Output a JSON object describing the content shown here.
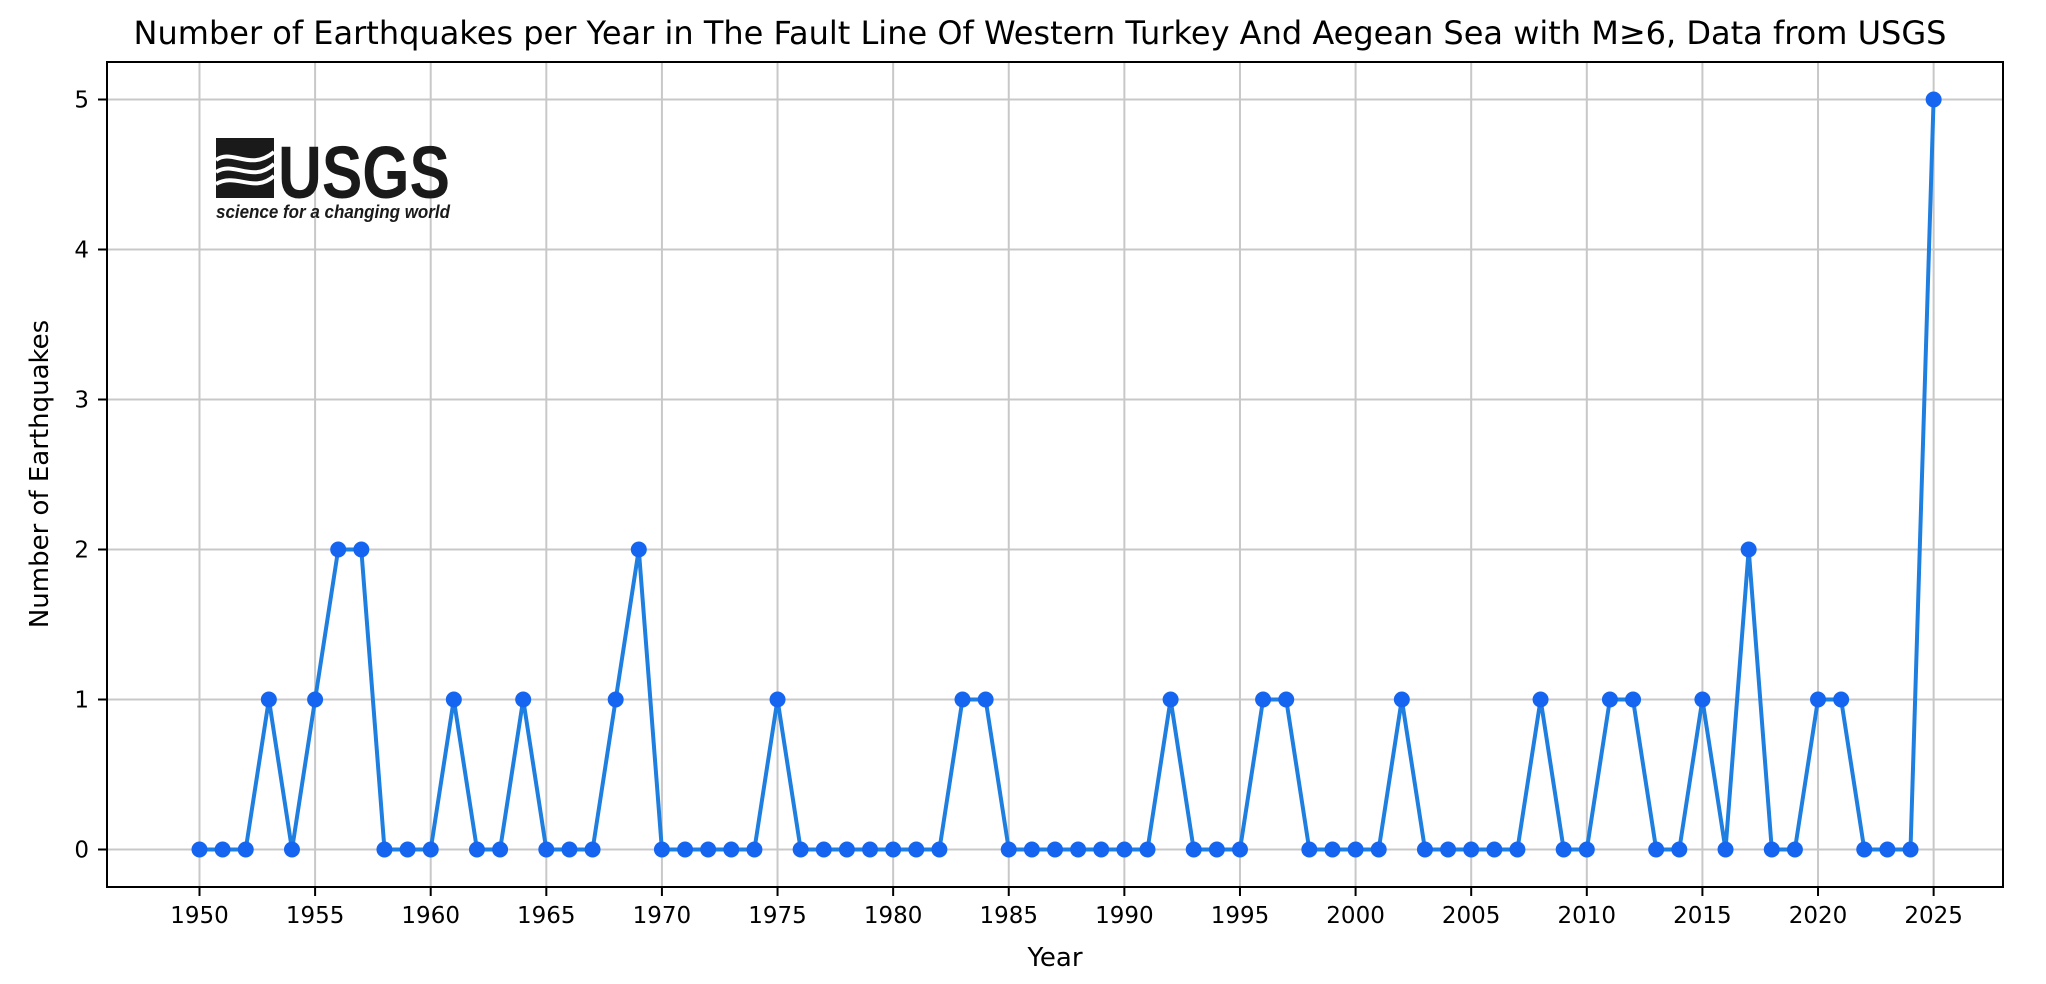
{
  "chart_data": {
    "type": "line",
    "title": "Number of Earthquakes per Year in The Fault Line Of Western Turkey And Aegean Sea with M≥6, Data from USGS",
    "xlabel": "Year",
    "ylabel": "Number of Earthquakes",
    "xlim": [
      1946,
      2028
    ],
    "ylim": [
      -0.25,
      5.25
    ],
    "xticks": [
      1950,
      1955,
      1960,
      1965,
      1970,
      1975,
      1980,
      1985,
      1990,
      1995,
      2000,
      2005,
      2010,
      2015,
      2020,
      2025
    ],
    "yticks": [
      0,
      1,
      2,
      3,
      4,
      5
    ],
    "grid": true,
    "line_color": "#1f7fe0",
    "marker_color": "#1565f0",
    "x": [
      1950,
      1951,
      1952,
      1953,
      1954,
      1955,
      1956,
      1957,
      1958,
      1959,
      1960,
      1961,
      1962,
      1963,
      1964,
      1965,
      1966,
      1967,
      1968,
      1969,
      1970,
      1971,
      1972,
      1973,
      1974,
      1975,
      1976,
      1977,
      1978,
      1979,
      1980,
      1981,
      1982,
      1983,
      1984,
      1985,
      1986,
      1987,
      1988,
      1989,
      1990,
      1991,
      1992,
      1993,
      1994,
      1995,
      1996,
      1997,
      1998,
      1999,
      2000,
      2001,
      2002,
      2003,
      2004,
      2005,
      2006,
      2007,
      2008,
      2009,
      2010,
      2011,
      2012,
      2013,
      2014,
      2015,
      2016,
      2017,
      2018,
      2019,
      2020,
      2021,
      2022,
      2023,
      2024,
      2025
    ],
    "values": [
      0,
      0,
      0,
      1,
      0,
      1,
      2,
      2,
      0,
      0,
      0,
      1,
      0,
      0,
      1,
      0,
      0,
      0,
      1,
      2,
      0,
      0,
      0,
      0,
      0,
      1,
      0,
      0,
      0,
      0,
      0,
      0,
      0,
      1,
      1,
      0,
      0,
      0,
      0,
      0,
      0,
      0,
      1,
      0,
      0,
      0,
      1,
      1,
      0,
      0,
      0,
      0,
      1,
      0,
      0,
      0,
      0,
      0,
      1,
      0,
      0,
      1,
      1,
      0,
      0,
      1,
      0,
      2,
      0,
      0,
      1,
      1,
      0,
      0,
      0,
      5
    ]
  },
  "logo": {
    "name": "USGS",
    "tagline": "science for a changing world",
    "icon": "usgs-wave-logo-icon"
  }
}
